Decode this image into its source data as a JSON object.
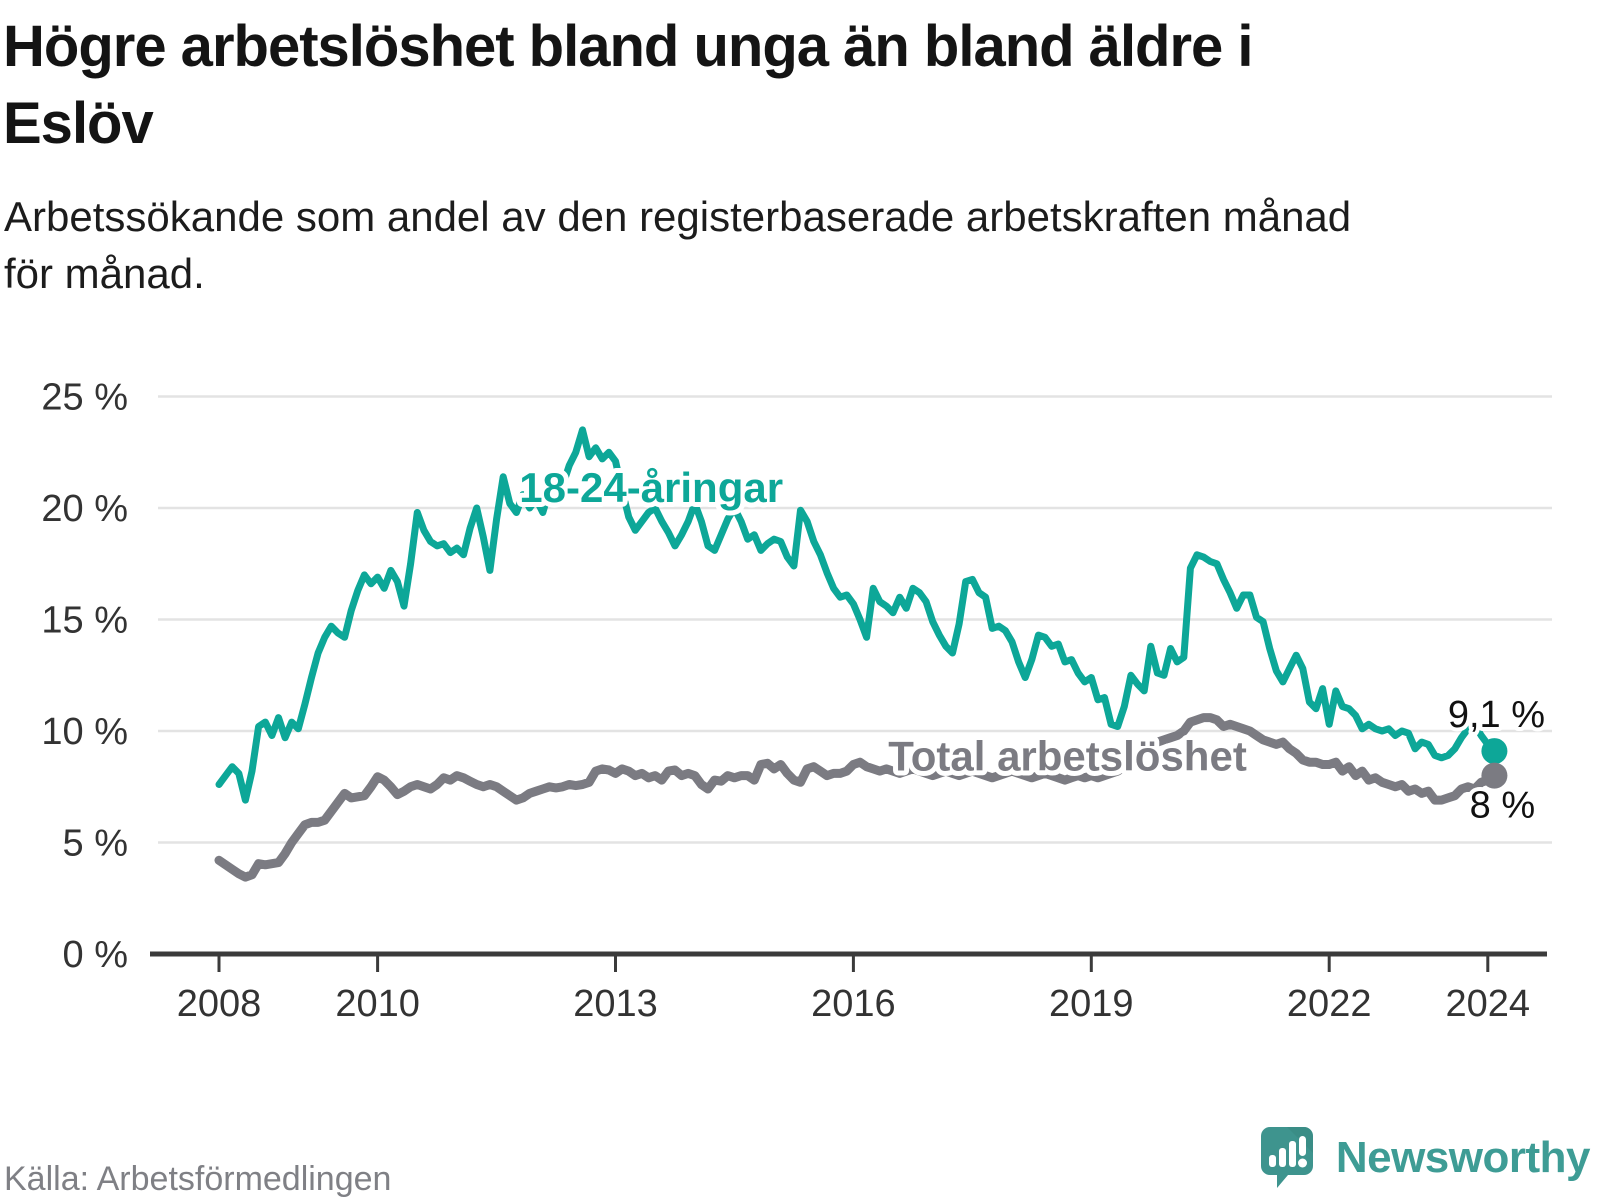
{
  "header": {
    "title_lines": [
      "Högre arbetslöshet bland unga än bland äldre i",
      "Eslöv"
    ],
    "subtitle_lines": [
      "Arbetssökande som andel av den registerbaserade arbetskraften månad",
      "för månad."
    ]
  },
  "footer": {
    "source": "Källa: Arbetsförmedlingen",
    "brand": "Newsworthy"
  },
  "colors": {
    "young": "#0DA798",
    "total": "#7b7b82",
    "grid": "#e3e3e3",
    "axis": "#3b3b3b",
    "axis_label": "#333333",
    "end_label": "#111111",
    "logo_teal": "#3E948E",
    "logo_text": "#3E9C95"
  },
  "chart_data": {
    "type": "line",
    "title": "Högre arbetslöshet bland unga än bland äldre i Eslöv",
    "x_start": {
      "year": 2008,
      "month": 1
    },
    "frequency": "monthly",
    "ylim": [
      0,
      25
    ],
    "grid": true,
    "y_ticks": [
      {
        "value": 0,
        "label": "0 %"
      },
      {
        "value": 5,
        "label": "5 %"
      },
      {
        "value": 10,
        "label": "10 %"
      },
      {
        "value": 15,
        "label": "15 %"
      },
      {
        "value": 20,
        "label": "20 %"
      },
      {
        "value": 25,
        "label": "25 %"
      }
    ],
    "x_ticks": [
      {
        "year": 2008,
        "label": "2008"
      },
      {
        "year": 2010,
        "label": "2010"
      },
      {
        "year": 2013,
        "label": "2013"
      },
      {
        "year": 2016,
        "label": "2016"
      },
      {
        "year": 2019,
        "label": "2019"
      },
      {
        "year": 2022,
        "label": "2022"
      },
      {
        "year": 2024,
        "label": "2024"
      }
    ],
    "series": [
      {
        "id": "young",
        "name": "18-24-åringar",
        "color": "#0DA798",
        "end_label": "9,1 %",
        "end_value": 9.1,
        "label_anchor": {
          "year": 2013.45,
          "value": 20.9
        },
        "values": [
          7.6,
          8.0,
          8.4,
          8.1,
          6.9,
          8.2,
          10.2,
          10.4,
          9.8,
          10.6,
          9.7,
          10.4,
          10.1,
          11.2,
          12.4,
          13.5,
          14.2,
          14.7,
          14.4,
          14.2,
          15.4,
          16.3,
          17.0,
          16.6,
          16.9,
          16.4,
          17.2,
          16.7,
          15.6,
          17.5,
          19.8,
          19.0,
          18.5,
          18.3,
          18.4,
          18.0,
          18.2,
          17.9,
          19.1,
          20.0,
          18.7,
          17.2,
          19.5,
          21.4,
          20.2,
          19.8,
          20.6,
          20.0,
          20.4,
          19.8,
          20.8,
          20.4,
          21.0,
          21.9,
          22.5,
          23.5,
          22.3,
          22.7,
          22.2,
          22.5,
          22.1,
          20.8,
          19.6,
          19.0,
          19.4,
          19.8,
          20.0,
          19.4,
          18.9,
          18.3,
          18.8,
          19.4,
          20.2,
          19.4,
          18.3,
          18.1,
          18.8,
          19.5,
          20.0,
          19.4,
          18.6,
          18.8,
          18.1,
          18.4,
          18.6,
          18.5,
          17.8,
          17.4,
          19.9,
          19.4,
          18.5,
          17.9,
          17.1,
          16.4,
          16.0,
          16.1,
          15.7,
          15.0,
          14.2,
          16.4,
          15.8,
          15.6,
          15.3,
          16.0,
          15.5,
          16.4,
          16.2,
          15.8,
          14.9,
          14.3,
          13.8,
          13.5,
          14.8,
          16.7,
          16.8,
          16.2,
          16.0,
          14.6,
          14.7,
          14.5,
          14.0,
          13.1,
          12.4,
          13.2,
          14.3,
          14.2,
          13.8,
          13.9,
          13.1,
          13.2,
          12.6,
          12.2,
          12.4,
          11.4,
          11.5,
          10.3,
          10.2,
          11.1,
          12.5,
          12.1,
          11.8,
          13.8,
          12.6,
          12.5,
          13.7,
          13.1,
          13.3,
          17.3,
          17.9,
          17.8,
          17.6,
          17.5,
          16.8,
          16.2,
          15.5,
          16.1,
          16.1,
          15.1,
          14.9,
          13.7,
          12.7,
          12.2,
          12.8,
          13.4,
          12.8,
          11.3,
          11.0,
          11.9,
          10.3,
          11.8,
          11.1,
          11.0,
          10.7,
          10.1,
          10.3,
          10.1,
          10.0,
          10.1,
          9.8,
          10.0,
          9.9,
          9.2,
          9.5,
          9.4,
          8.9,
          8.8,
          8.9,
          9.2,
          9.7,
          10.1,
          10.3,
          9.8,
          9.4,
          9.1
        ]
      },
      {
        "id": "total",
        "name": "Total arbetslöshet",
        "color": "#7b7b82",
        "end_label": "8 %",
        "end_value": 8.0,
        "label_anchor": {
          "year": 2018.7,
          "value": 8.85
        },
        "values": [
          4.2,
          4.0,
          3.8,
          3.6,
          3.45,
          3.55,
          4.05,
          4.0,
          4.05,
          4.1,
          4.5,
          5.0,
          5.4,
          5.8,
          5.9,
          5.9,
          6.0,
          6.4,
          6.8,
          7.2,
          7.0,
          7.05,
          7.1,
          7.5,
          7.95,
          7.8,
          7.5,
          7.15,
          7.3,
          7.5,
          7.6,
          7.5,
          7.4,
          7.6,
          7.9,
          7.8,
          8.0,
          7.9,
          7.75,
          7.6,
          7.5,
          7.6,
          7.5,
          7.3,
          7.1,
          6.9,
          7.0,
          7.2,
          7.3,
          7.4,
          7.5,
          7.45,
          7.5,
          7.6,
          7.55,
          7.6,
          7.7,
          8.2,
          8.3,
          8.25,
          8.1,
          8.3,
          8.2,
          8.0,
          8.1,
          7.9,
          8.0,
          7.8,
          8.2,
          8.25,
          8.0,
          8.1,
          8.0,
          7.6,
          7.4,
          7.8,
          7.75,
          8.0,
          7.9,
          8.0,
          8.0,
          7.8,
          8.5,
          8.55,
          8.3,
          8.5,
          8.1,
          7.8,
          7.7,
          8.3,
          8.4,
          8.2,
          8.0,
          8.1,
          8.1,
          8.2,
          8.5,
          8.6,
          8.4,
          8.3,
          8.2,
          8.3,
          8.2,
          8.1,
          8.2,
          8.3,
          8.2,
          8.1,
          8.0,
          8.1,
          8.2,
          8.1,
          8.0,
          8.1,
          8.2,
          8.1,
          8.0,
          7.9,
          8.0,
          8.1,
          8.2,
          8.1,
          8.0,
          7.9,
          8.0,
          8.1,
          8.0,
          7.9,
          7.8,
          7.9,
          8.0,
          7.9,
          8.0,
          7.9,
          8.0,
          8.1,
          8.2,
          8.4,
          8.6,
          8.9,
          9.2,
          9.4,
          9.5,
          9.6,
          9.7,
          9.8,
          10.0,
          10.4,
          10.5,
          10.6,
          10.6,
          10.5,
          10.2,
          10.3,
          10.2,
          10.1,
          10.0,
          9.8,
          9.6,
          9.5,
          9.4,
          9.5,
          9.2,
          9.0,
          8.7,
          8.6,
          8.6,
          8.5,
          8.5,
          8.6,
          8.2,
          8.4,
          8.0,
          8.2,
          7.8,
          7.9,
          7.7,
          7.6,
          7.5,
          7.6,
          7.3,
          7.4,
          7.2,
          7.3,
          6.9,
          6.9,
          7.0,
          7.1,
          7.4,
          7.5,
          7.4,
          7.7,
          7.8,
          8.0
        ]
      }
    ]
  }
}
